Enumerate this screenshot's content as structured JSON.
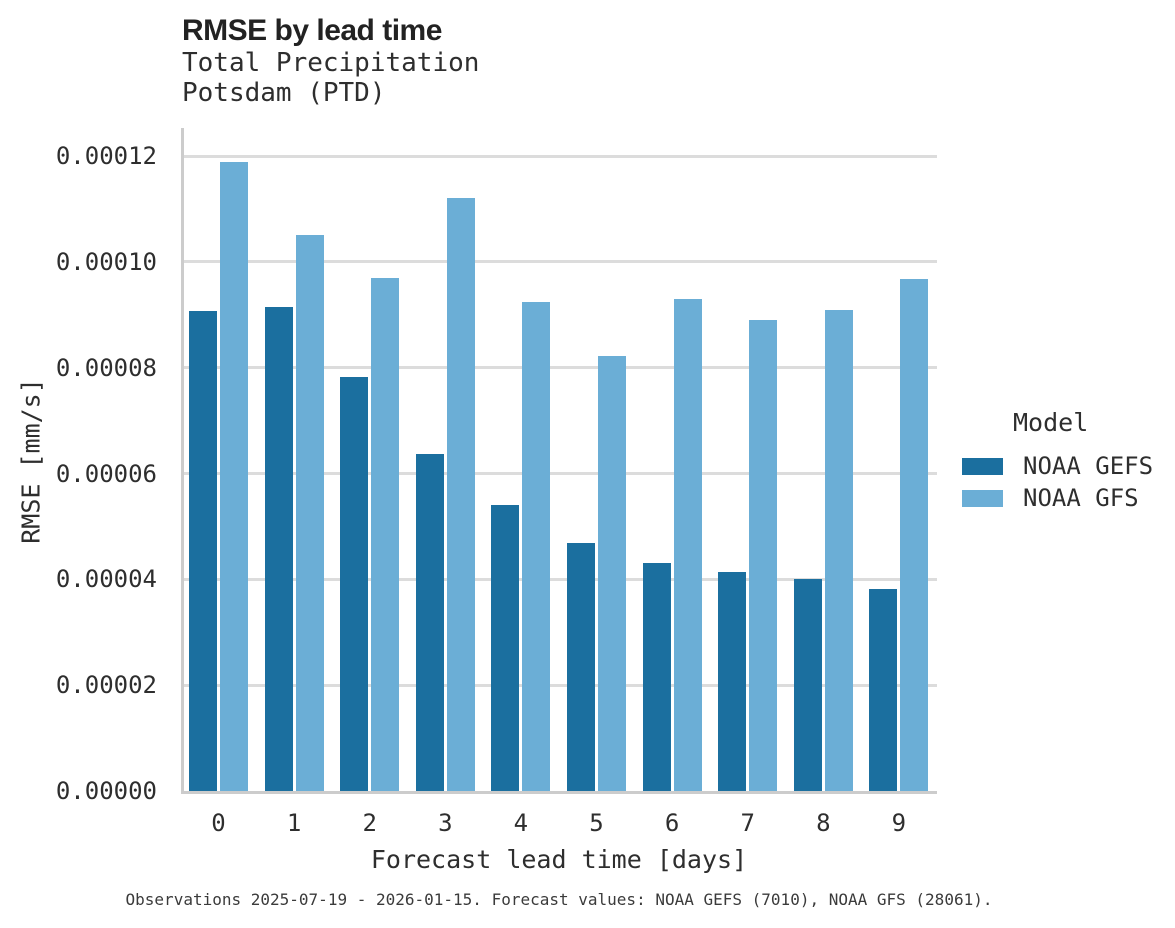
{
  "chart_data": {
    "type": "bar",
    "title": "RMSE by lead time",
    "subtitle": [
      "Total Precipitation",
      "Potsdam (PTD)"
    ],
    "xlabel": "Forecast lead time [days]",
    "ylabel": "RMSE [mm/s]",
    "categories": [
      "0",
      "1",
      "2",
      "3",
      "4",
      "5",
      "6",
      "7",
      "8",
      "9"
    ],
    "series": [
      {
        "name": "NOAA GEFS",
        "color": "#1b6f9f",
        "values": [
          9.08e-05,
          9.15e-05,
          7.82e-05,
          6.37e-05,
          5.41e-05,
          4.69e-05,
          4.3e-05,
          4.13e-05,
          4.01e-05,
          3.82e-05
        ]
      },
      {
        "name": "NOAA GFS",
        "color": "#6baed6",
        "values": [
          0.0001189,
          0.0001051,
          9.7e-05,
          0.0001121,
          9.24e-05,
          8.22e-05,
          9.29e-05,
          8.9e-05,
          9.09e-05,
          9.68e-05
        ]
      }
    ],
    "y_ticks": [
      {
        "label": "0.00000",
        "value": 0.0
      },
      {
        "label": "0.00002",
        "value": 2e-05
      },
      {
        "label": "0.00004",
        "value": 4e-05
      },
      {
        "label": "0.00006",
        "value": 6e-05
      },
      {
        "label": "0.00008",
        "value": 8e-05
      },
      {
        "label": "0.00010",
        "value": 0.0001
      },
      {
        "label": "0.00012",
        "value": 0.00012
      }
    ],
    "ylim": [
      0,
      0.0001253
    ],
    "grid": "horizontal-only",
    "legend_position": "right"
  },
  "legend": {
    "title": "Model",
    "items": [
      {
        "label": "NOAA GEFS",
        "color": "#1b6f9f"
      },
      {
        "label": "NOAA GFS",
        "color": "#6baed6"
      }
    ]
  },
  "caption": "Observations 2025-07-19 - 2026-01-15. Forecast values: NOAA GEFS (7010), NOAA GFS (28061).",
  "colors": {
    "gefs_bar": "#1b6f9f",
    "gfs_bar": "#6baed6",
    "gridline": "#dcdcdc",
    "axis": "#cccccc",
    "text": "#2e2e2e"
  }
}
